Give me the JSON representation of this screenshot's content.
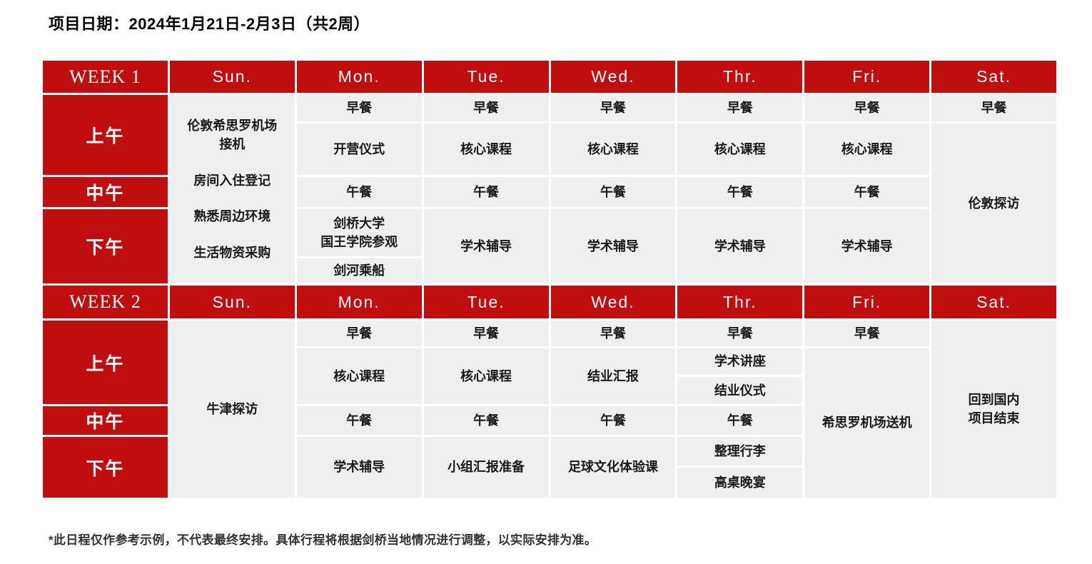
{
  "title": "项目日期：2024年1月21日-2月3日（共2周）",
  "footnote": "*此日程仅作参考示例，不代表最终安排。具体行程将根据剑桥当地情况进行调整，以实际安排为准。",
  "colors": {
    "accent_red": "#C00D0D",
    "cell_bg": "#EFEFEF",
    "header_text": "#FFFFFF",
    "cell_text": "#1A1A1A"
  },
  "week1": {
    "label": "WEEK 1",
    "days": [
      "Sun.",
      "Mon.",
      "Tue.",
      "Wed.",
      "Thr.",
      "Fri.",
      "Sat."
    ],
    "times": [
      "上午",
      "中午",
      "下午"
    ],
    "sun": [
      "伦敦希思罗机场\n接机",
      "房间入住登记",
      "熟悉周边环境",
      "生活物资采购"
    ],
    "mon": [
      "早餐",
      "开营仪式",
      "午餐",
      "剑桥大学\n国王学院参观",
      "剑河乘船"
    ],
    "tue": [
      "早餐",
      "核心课程",
      "午餐",
      "学术辅导"
    ],
    "wed": [
      "早餐",
      "核心课程",
      "午餐",
      "学术辅导"
    ],
    "thr": [
      "早餐",
      "核心课程",
      "午餐",
      "学术辅导"
    ],
    "fri": [
      "早餐",
      "核心课程",
      "午餐",
      "学术辅导"
    ],
    "sat": [
      "早餐",
      "伦敦探访"
    ]
  },
  "week2": {
    "label": "WEEK 2",
    "days": [
      "Sun.",
      "Mon.",
      "Tue.",
      "Wed.",
      "Thr.",
      "Fri.",
      "Sat."
    ],
    "times": [
      "上午",
      "中午",
      "下午"
    ],
    "sun": [
      "牛津探访"
    ],
    "mon": [
      "早餐",
      "核心课程",
      "午餐",
      "学术辅导"
    ],
    "tue": [
      "早餐",
      "核心课程",
      "午餐",
      "小组汇报准备"
    ],
    "wed": [
      "早餐",
      "结业汇报",
      "午餐",
      "足球文化体验课"
    ],
    "thr": [
      "早餐",
      "学术讲座",
      "结业仪式",
      "午餐",
      "整理行李",
      "高桌晚宴"
    ],
    "fri": [
      "早餐",
      "希思罗机场送机"
    ],
    "sat": [
      "回到国内\n项目结束"
    ]
  }
}
